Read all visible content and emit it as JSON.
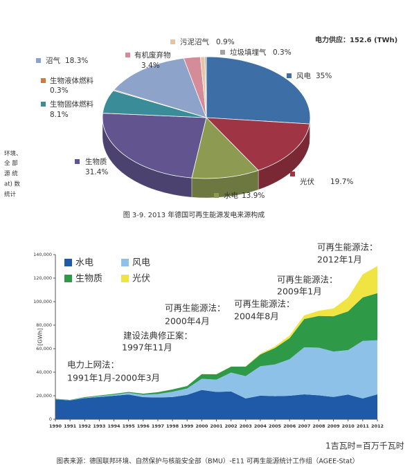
{
  "margin_text": [
    "环境、",
    "全 部",
    "源 统",
    "at) 数",
    "统计"
  ],
  "chart_data": [
    {
      "type": "pie3d",
      "title": "图 3-9. 2013 年德国可再生能源发电来源构成",
      "annotation": "电力供应：152.6 (TWh)",
      "categories": [
        "风电",
        "光伏",
        "水电",
        "生物质",
        "生物固体燃料",
        "生物液体燃料",
        "沼气",
        "有机废弃物",
        "污泥沼气",
        "垃圾填埋气"
      ],
      "values": [
        35,
        19.7,
        13.9,
        31.4,
        8.1,
        0.3,
        18.3,
        3.4,
        0.9,
        0.3
      ],
      "value_labels": [
        "35%",
        "19.7%",
        "13.9%",
        "31.4%",
        "8.1%",
        "0.3%",
        "18.3%",
        "3.4%",
        "0.9%",
        "0.3%"
      ],
      "colors": [
        "#3d6fa6",
        "#9e3444",
        "#8c9a52",
        "#62558f",
        "#3b8c99",
        "#d5763f",
        "#8ea3c9",
        "#d58c99",
        "#e6c3a3",
        "#a3a3a3"
      ]
    },
    {
      "type": "stacked_area",
      "y_label": "[GWh]",
      "note": "1吉瓦时=百万千瓦时",
      "source": "图表来源：德国联邦环境、自然保护与核能安全部（BMU）-E11 可再生能源统计工作组（AGEE-Stat）",
      "x": [
        1990,
        1991,
        1992,
        1993,
        1994,
        1995,
        1996,
        1997,
        1998,
        1999,
        2000,
        2001,
        2002,
        2003,
        2004,
        2005,
        2006,
        2007,
        2008,
        2009,
        2010,
        2011,
        2012
      ],
      "xlim": [
        1990,
        2012
      ],
      "xticks": [
        1990,
        1991,
        1992,
        1993,
        1994,
        1995,
        1996,
        1997,
        1998,
        1999,
        2000,
        2001,
        2002,
        2003,
        2004,
        2005,
        2006,
        2007,
        2008,
        2009,
        2010,
        2011,
        2012
      ],
      "ylim": [
        0,
        140000
      ],
      "yticks": [
        {
          "value": 0,
          "label": "0"
        },
        {
          "value": 20000,
          "label": "20,000"
        },
        {
          "value": 40000,
          "label": "40,000"
        },
        {
          "value": 60000,
          "label": "60,000"
        },
        {
          "value": 80000,
          "label": "80,000"
        },
        {
          "value": 100000,
          "label": "100,000"
        },
        {
          "value": 120000,
          "label": "120,000"
        },
        {
          "value": 140000,
          "label": "140,000"
        }
      ],
      "series": [
        {
          "name": "水电",
          "color": "#1f5aa8",
          "values": [
            17000,
            16000,
            18000,
            19000,
            20000,
            21000,
            18800,
            18500,
            18900,
            20700,
            24900,
            23200,
            23700,
            17700,
            20100,
            19600,
            20000,
            21200,
            20400,
            19000,
            21000,
            17700,
            21200
          ]
        },
        {
          "name": "风电",
          "color": "#8ec1e8",
          "values": [
            100,
            200,
            300,
            600,
            900,
            1500,
            2000,
            3000,
            4500,
            5500,
            9500,
            10500,
            16000,
            19000,
            25000,
            27000,
            31000,
            40000,
            40500,
            38600,
            37800,
            48900,
            46000
          ]
        },
        {
          "name": "生物质",
          "color": "#2e9a48",
          "values": [
            300,
            300,
            500,
            600,
            700,
            700,
            1000,
            1500,
            2000,
            2000,
            4000,
            4500,
            5000,
            8000,
            10000,
            14000,
            18000,
            24000,
            27000,
            30000,
            33000,
            37000,
            40000
          ]
        },
        {
          "name": "光伏",
          "color": "#f0e442",
          "values": [
            0,
            0,
            0,
            0,
            0,
            0,
            0,
            0,
            0,
            0,
            60,
            100,
            200,
            300,
            600,
            1300,
            2200,
            3100,
            4400,
            6600,
            11700,
            19600,
            23000
          ]
        }
      ],
      "annotations": [
        {
          "lines": [
            "电力上网法：",
            "1991年1月-2000年3月"
          ],
          "color": "#f2a640"
        },
        {
          "lines": [
            "建设法典修正案：",
            "1997年11月"
          ],
          "color": "#f2a640"
        },
        {
          "lines": [
            "可再生能源法：",
            "2000年4月"
          ],
          "color": "#3a6ea8"
        },
        {
          "lines": [
            "可再生能源法：",
            "2004年8月"
          ],
          "color": "#3a6ea8"
        },
        {
          "lines": [
            "可再生能源法：",
            "2009年1月"
          ],
          "color": "#3a6ea8"
        },
        {
          "lines": [
            "可再生能源法：",
            "2012年1月"
          ],
          "color": "#3a6ea8"
        }
      ]
    }
  ]
}
